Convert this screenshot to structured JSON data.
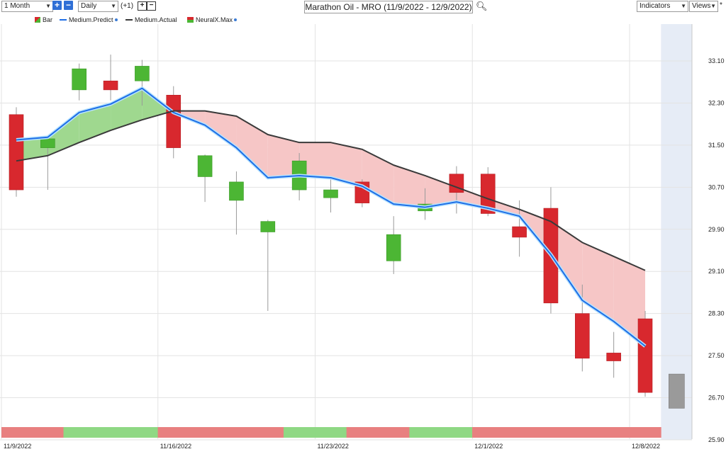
{
  "toolbar": {
    "period_select": "1 Month",
    "interval_select": "Daily",
    "offset_label": "(+1)",
    "title": "Marathon Oil - MRO (11/9/2022 - 12/9/2022)",
    "indicators_label": "Indicators",
    "views_label": "Views",
    "views_star": "*"
  },
  "legend": {
    "bar": "Bar",
    "predict": "Medium.Predict",
    "actual": "Medium.Actual",
    "neural": "NeuralX.Max"
  },
  "colors": {
    "up": "#4cb634",
    "down": "#d8282e",
    "predict": "#1e6ee6",
    "actual": "#3a3a3a",
    "fill_green": "#9fd88f",
    "fill_red": "#f6c6c6",
    "strip_green": "#8fd884",
    "strip_red": "#e88080",
    "forecast_bg": "#e6ecf6"
  },
  "chart_data": {
    "type": "candlestick",
    "title": "Marathon Oil - MRO (11/9/2022 - 12/9/2022)",
    "x_labels": [
      "11/9/2022",
      "11/16/2022",
      "11/23/2022",
      "12/1/2022",
      "12/8/2022"
    ],
    "y_ticks": [
      "33.10",
      "32.30",
      "31.50",
      "30.70",
      "29.90",
      "29.10",
      "28.30",
      "27.50",
      "26.70",
      "25.90"
    ],
    "ylim": [
      25.9,
      33.8
    ],
    "grid": true,
    "candles": [
      {
        "date": "11/9/2022",
        "open": 32.08,
        "high": 32.22,
        "low": 30.52,
        "close": 30.65
      },
      {
        "date": "11/10/2022",
        "open": 31.45,
        "high": 31.62,
        "low": 30.65,
        "close": 31.62
      },
      {
        "date": "11/11/2022",
        "open": 32.55,
        "high": 33.05,
        "low": 32.35,
        "close": 32.95
      },
      {
        "date": "11/14/2022",
        "open": 32.72,
        "high": 33.22,
        "low": 32.35,
        "close": 32.55
      },
      {
        "date": "11/15/2022",
        "open": 32.72,
        "high": 33.12,
        "low": 32.25,
        "close": 33.0
      },
      {
        "date": "11/16/2022",
        "open": 32.45,
        "high": 32.62,
        "low": 31.25,
        "close": 31.45
      },
      {
        "date": "11/17/2022",
        "open": 30.9,
        "high": 31.32,
        "low": 30.42,
        "close": 31.3
      },
      {
        "date": "11/18/2022",
        "open": 30.45,
        "high": 31.0,
        "low": 29.8,
        "close": 30.8
      },
      {
        "date": "11/21/2022",
        "open": 29.85,
        "high": 30.08,
        "low": 28.35,
        "close": 30.05
      },
      {
        "date": "11/22/2022",
        "open": 30.65,
        "high": 31.35,
        "low": 30.45,
        "close": 31.2
      },
      {
        "date": "11/23/2022",
        "open": 30.5,
        "high": 30.9,
        "low": 30.22,
        "close": 30.65
      },
      {
        "date": "11/25/2022",
        "open": 30.8,
        "high": 30.85,
        "low": 30.32,
        "close": 30.4
      },
      {
        "date": "11/28/2022",
        "open": 29.3,
        "high": 30.15,
        "low": 29.05,
        "close": 29.8
      },
      {
        "date": "11/29/2022",
        "open": 30.25,
        "high": 30.68,
        "low": 30.08,
        "close": 30.38
      },
      {
        "date": "11/30/2022",
        "open": 30.95,
        "high": 31.1,
        "low": 30.2,
        "close": 30.6
      },
      {
        "date": "12/1/2022",
        "open": 30.95,
        "high": 31.08,
        "low": 30.15,
        "close": 30.2
      },
      {
        "date": "12/2/2022",
        "open": 29.95,
        "high": 30.45,
        "low": 29.38,
        "close": 29.75
      },
      {
        "date": "12/5/2022",
        "open": 30.3,
        "high": 30.7,
        "low": 28.3,
        "close": 28.5
      },
      {
        "date": "12/6/2022",
        "open": 28.3,
        "high": 28.85,
        "low": 27.2,
        "close": 27.45
      },
      {
        "date": "12/7/2022",
        "open": 27.55,
        "high": 27.95,
        "low": 27.08,
        "close": 27.4
      },
      {
        "date": "12/8/2022",
        "open": 28.2,
        "high": 28.35,
        "low": 26.72,
        "close": 26.8
      }
    ],
    "forecast_bar": {
      "date": "12/9/2022",
      "high": 27.15,
      "low": 26.5
    },
    "series": [
      {
        "name": "Medium.Predict",
        "values": [
          31.6,
          31.65,
          32.12,
          32.28,
          32.58,
          32.12,
          31.88,
          31.45,
          30.88,
          30.92,
          30.88,
          30.72,
          30.38,
          30.32,
          30.42,
          30.3,
          30.15,
          29.42,
          28.55,
          28.15,
          27.68
        ]
      },
      {
        "name": "Medium.Actual",
        "values": [
          31.2,
          31.3,
          31.55,
          31.78,
          31.98,
          32.15,
          32.15,
          32.05,
          31.7,
          31.55,
          31.55,
          31.42,
          31.12,
          30.92,
          30.7,
          30.48,
          30.28,
          30.05,
          29.65,
          null,
          29.12
        ]
      }
    ],
    "trend_strip": [
      "red",
      "red",
      "green",
      "green",
      "green",
      "red",
      "red",
      "red",
      "red",
      "green",
      "green",
      "red",
      "red",
      "green",
      "green",
      "red",
      "red",
      "red",
      "red",
      "red",
      "red"
    ]
  }
}
